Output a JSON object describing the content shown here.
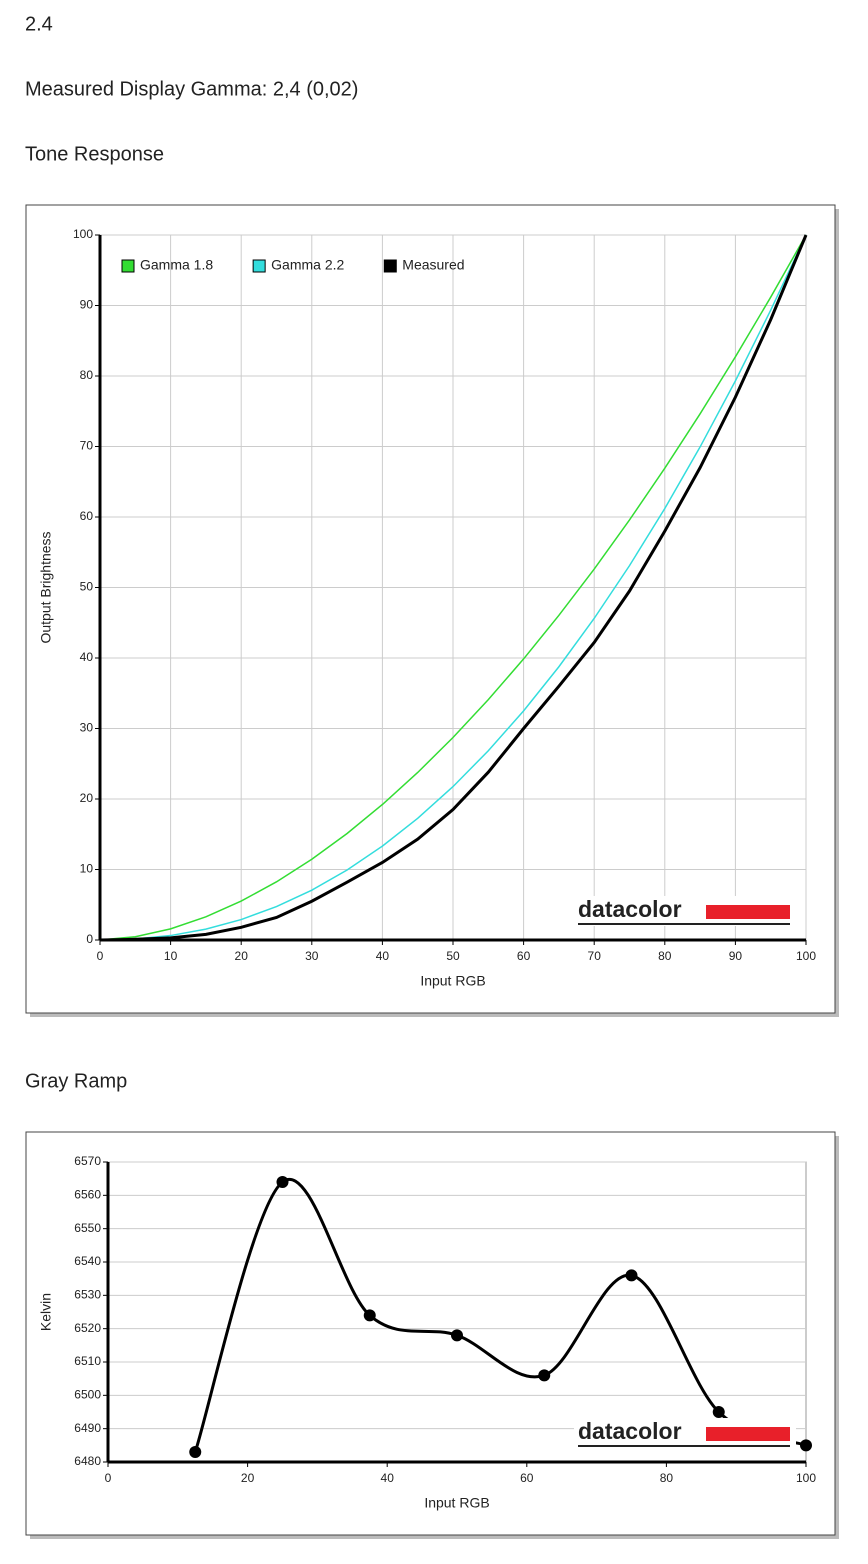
{
  "page": {
    "value": "2.4",
    "gamma_text": "Measured Display Gamma: 2,4 (0,02)",
    "headings": [
      "Tone Response",
      "Gray Ramp"
    ]
  },
  "chart_data": [
    {
      "type": "line",
      "xlabel": "Input RGB",
      "ylabel": "Output Brightness",
      "watermark": "datacolor",
      "x": [
        0,
        5,
        10,
        15,
        20,
        25,
        30,
        35,
        40,
        45,
        50,
        55,
        60,
        65,
        70,
        75,
        80,
        85,
        90,
        95,
        100
      ],
      "series": [
        {
          "name": "Gamma 1.8",
          "color": "#33dd33",
          "values": [
            0,
            0.46,
            1.58,
            3.29,
            5.52,
            8.25,
            11.45,
            15.11,
            19.22,
            23.76,
            28.72,
            34.09,
            39.87,
            46.05,
            52.62,
            59.58,
            66.92,
            74.64,
            82.72,
            91.18,
            100
          ]
        },
        {
          "name": "Gamma 2.2",
          "color": "#33dddd",
          "values": [
            0,
            0.14,
            0.63,
            1.54,
            2.9,
            4.74,
            7.07,
            9.93,
            13.32,
            17.26,
            21.76,
            26.84,
            32.5,
            38.76,
            45.62,
            53.1,
            61.21,
            69.94,
            79.31,
            89.33,
            100
          ]
        },
        {
          "name": "Measured",
          "color": "#000000",
          "values": [
            0,
            0.1,
            0.3,
            0.8,
            1.8,
            3.2,
            5.5,
            8.2,
            11,
            14.3,
            18.5,
            23.8,
            30,
            36,
            42.2,
            49.5,
            58,
            67,
            77,
            88,
            100
          ]
        }
      ],
      "xlim": [
        0,
        100
      ],
      "ylim": [
        0,
        100
      ],
      "xticks": [
        0,
        10,
        20,
        30,
        40,
        50,
        60,
        70,
        80,
        90,
        100
      ],
      "yticks": [
        0,
        10,
        20,
        30,
        40,
        50,
        60,
        70,
        80,
        90,
        100
      ],
      "grid": "both",
      "legend": "top-left"
    },
    {
      "type": "line",
      "xlabel": "Input RGB",
      "ylabel": "Kelvin",
      "watermark": "datacolor",
      "x": [
        12.5,
        25,
        37.5,
        50,
        62.5,
        75,
        87.5,
        100
      ],
      "values": [
        6483,
        6564,
        6524,
        6518,
        6506,
        6536,
        6495,
        6485
      ],
      "color": "#000000",
      "smooth": true,
      "markers": true,
      "xlim": [
        0,
        100
      ],
      "ylim": [
        6480,
        6570
      ],
      "xticks": [
        0,
        20,
        40,
        60,
        80,
        100
      ],
      "yticks": [
        6480,
        6490,
        6500,
        6510,
        6520,
        6530,
        6540,
        6550,
        6560,
        6570
      ],
      "grid": "y"
    }
  ]
}
